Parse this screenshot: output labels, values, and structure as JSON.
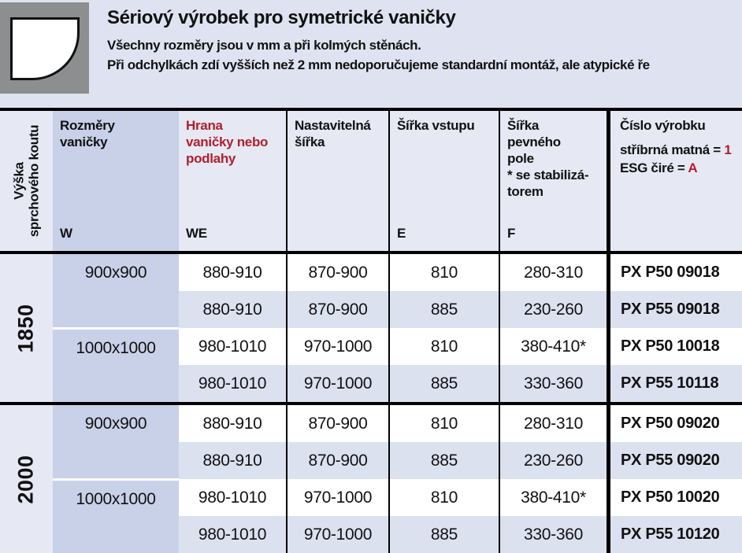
{
  "page": {
    "title": "Sériový výrobek pro symetrické vaničky",
    "note_line1": "Všechny rozměry jsou v mm a při kolmých stěnách.",
    "note_line2": "Při odchylkách zdí vyšších než 2 mm nedoporučujeme standardní montáž, ale atypické ře",
    "icon": "quarter-round-shower-tray"
  },
  "colors": {
    "accent_red": "#b01e2c",
    "row_alt_bg": "#dce1f0",
    "tray_column_bg": "#c9d1e9",
    "panel_bg": "#e6e9f4",
    "icon_box_gray": "#8d8e90"
  },
  "table": {
    "head": {
      "height_col": {
        "line1": "Výška",
        "line2": "sprchového koutu"
      },
      "tray_col": {
        "line1": "Rozměry",
        "line2": "vaničky",
        "code": "W"
      },
      "edge_col": {
        "line1": "Hrana",
        "line2": "vaničky nebo",
        "line3": "podlahy",
        "code": "WE"
      },
      "adjustable_col": {
        "line1": "Nastavitelná",
        "line2": "šířka"
      },
      "entry_col": {
        "line1": "Šířka vstupu",
        "code": "E"
      },
      "fixed_col": {
        "line1": "Šířka",
        "line2": "pevného",
        "line3": "pole",
        "line4": "* se stabilizá-",
        "line5": "torem",
        "code": "F"
      },
      "product_col": {
        "line1": "Číslo výrobku",
        "finish1_label": "stříbrná matná = ",
        "finish1_code": "1",
        "finish2_label": "ESG čiré = ",
        "finish2_code": "A"
      }
    },
    "groups": [
      {
        "height": "1850",
        "tray1": "900x900",
        "tray2": "1000x1000"
      },
      {
        "height": "2000",
        "tray1": "900x900",
        "tray2": "1000x1000"
      }
    ],
    "rows": [
      {
        "we": "880-910",
        "adj": "870-900",
        "e": "810",
        "f": "280-310",
        "code": "PX P50 09018"
      },
      {
        "we": "880-910",
        "adj": "870-900",
        "e": "885",
        "f": "230-260",
        "code": "PX P55 09018"
      },
      {
        "we": "980-1010",
        "adj": "970-1000",
        "e": "810",
        "f": "380-410*",
        "code": "PX P50 10018"
      },
      {
        "we": "980-1010",
        "adj": "970-1000",
        "e": "885",
        "f": "330-360",
        "code": "PX P55 10118"
      },
      {
        "we": "880-910",
        "adj": "870-900",
        "e": "810",
        "f": "280-310",
        "code": "PX P50 09020"
      },
      {
        "we": "880-910",
        "adj": "870-900",
        "e": "885",
        "f": "230-260",
        "code": "PX P55 09020"
      },
      {
        "we": "980-1010",
        "adj": "970-1000",
        "e": "810",
        "f": "380-410*",
        "code": "PX P50 10020"
      },
      {
        "we": "980-1010",
        "adj": "970-1000",
        "e": "885",
        "f": "330-360",
        "code": "PX P55 10120"
      }
    ]
  }
}
